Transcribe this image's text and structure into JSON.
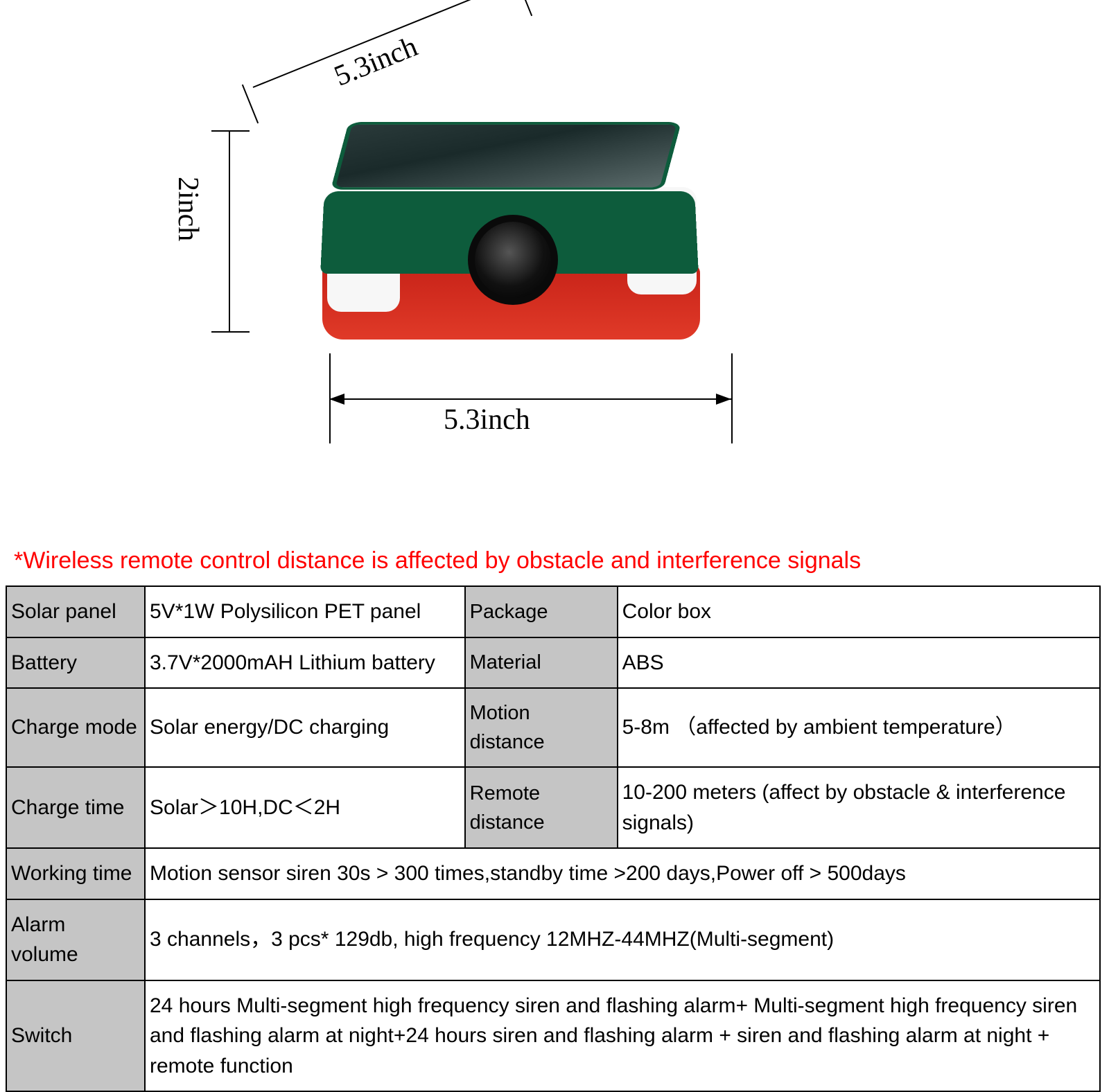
{
  "dimensions": {
    "top": "5.3inch",
    "left": "2inch",
    "bottom": "5.3inch",
    "font_family": "Times New Roman",
    "font_size_pt": 32
  },
  "note": {
    "text": "*Wireless remote control distance is affected by obstacle and interference signals",
    "color": "#ff0000",
    "font_size_pt": 26
  },
  "device_colors": {
    "solar_panel": "#2a3a3a",
    "frame_green": "#0d5c3c",
    "base_red": "#c72218",
    "sensor_white": "#f7f7f7",
    "speaker_dark": "#111111"
  },
  "spec_table": {
    "header_bg": "#c5c5c5",
    "border_color": "#000000",
    "font_size_pt": 22,
    "rows_top": [
      {
        "label_l": "Solar panel",
        "value_l": "5V*1W Polysilicon PET panel",
        "label_r": "Package",
        "value_r": "Color box"
      },
      {
        "label_l": "Battery",
        "value_l": "3.7V*2000mAH Lithium battery",
        "label_r": "Material",
        "value_r": "ABS"
      },
      {
        "label_l": "Charge mode",
        "value_l": "Solar energy/DC charging",
        "label_r": "Motion distance",
        "value_r": "5-8m （affected by ambient temperature）"
      },
      {
        "label_l": "Charge time",
        "value_l": "Solar＞10H,DC＜2H",
        "label_r": "Remote distance",
        "value_r": "10-200 meters (affect by obstacle & interference signals)"
      }
    ],
    "rows_full": [
      {
        "label": "Working time",
        "value": " Motion sensor siren 30s > 300 times,standby time >200 days,Power off > 500days"
      },
      {
        "label": "Alarm volume",
        "value": "3 channels，3 pcs* 129db, high frequency 12MHZ-44MHZ(Multi-segment)"
      },
      {
        "label": "Switch",
        "value": " 24 hours Multi-segment high frequency siren and flashing alarm+ Multi-segment high frequency siren and flashing alarm at night+24 hours siren and flashing alarm + siren and flashing alarm at night + remote function"
      }
    ]
  }
}
